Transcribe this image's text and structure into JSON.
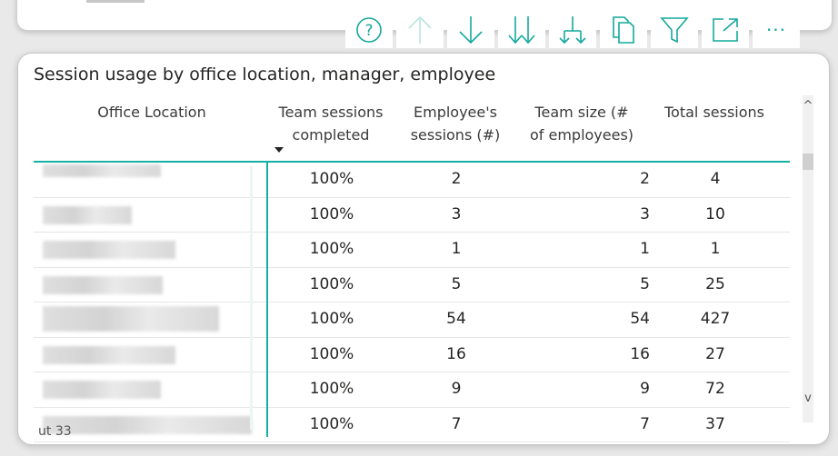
{
  "toolbar": {
    "icons": [
      "help-icon",
      "arrow-up-icon",
      "arrow-down-icon",
      "double-arrow-down-icon",
      "expand-hierarchy-icon",
      "copy-icon",
      "filter-icon",
      "focus-mode-icon",
      "more-options-icon"
    ],
    "more_label": "···"
  },
  "visual": {
    "title": "Session usage by office location, manager, employee"
  },
  "table": {
    "columns": [
      {
        "key": "office",
        "label": "Office Location"
      },
      {
        "key": "team",
        "label": "Team sessions\ncompleted"
      },
      {
        "key": "emp",
        "label": "Employee's\nsessions (#)"
      },
      {
        "key": "size",
        "label": "Team size (#\nof employees)"
      },
      {
        "key": "total",
        "label": "Total sessions"
      }
    ],
    "sorted_column": "team",
    "rows": [
      {
        "team": "100%",
        "emp": "2",
        "size": "2",
        "total": "4"
      },
      {
        "team": "100%",
        "emp": "3",
        "size": "3",
        "total": "10"
      },
      {
        "team": "100%",
        "emp": "1",
        "size": "1",
        "total": "1"
      },
      {
        "team": "100%",
        "emp": "5",
        "size": "5",
        "total": "25"
      },
      {
        "team": "100%",
        "emp": "54",
        "size": "54",
        "total": "427"
      },
      {
        "team": "100%",
        "emp": "16",
        "size": "16",
        "total": "27"
      },
      {
        "team": "100%",
        "emp": "9",
        "size": "9",
        "total": "72"
      },
      {
        "team": "100%",
        "emp": "7",
        "size": "7",
        "total": "37"
      }
    ]
  },
  "scroll": {
    "up_label": "^",
    "down_label": "v"
  },
  "partial_row_text": "ut 33"
}
